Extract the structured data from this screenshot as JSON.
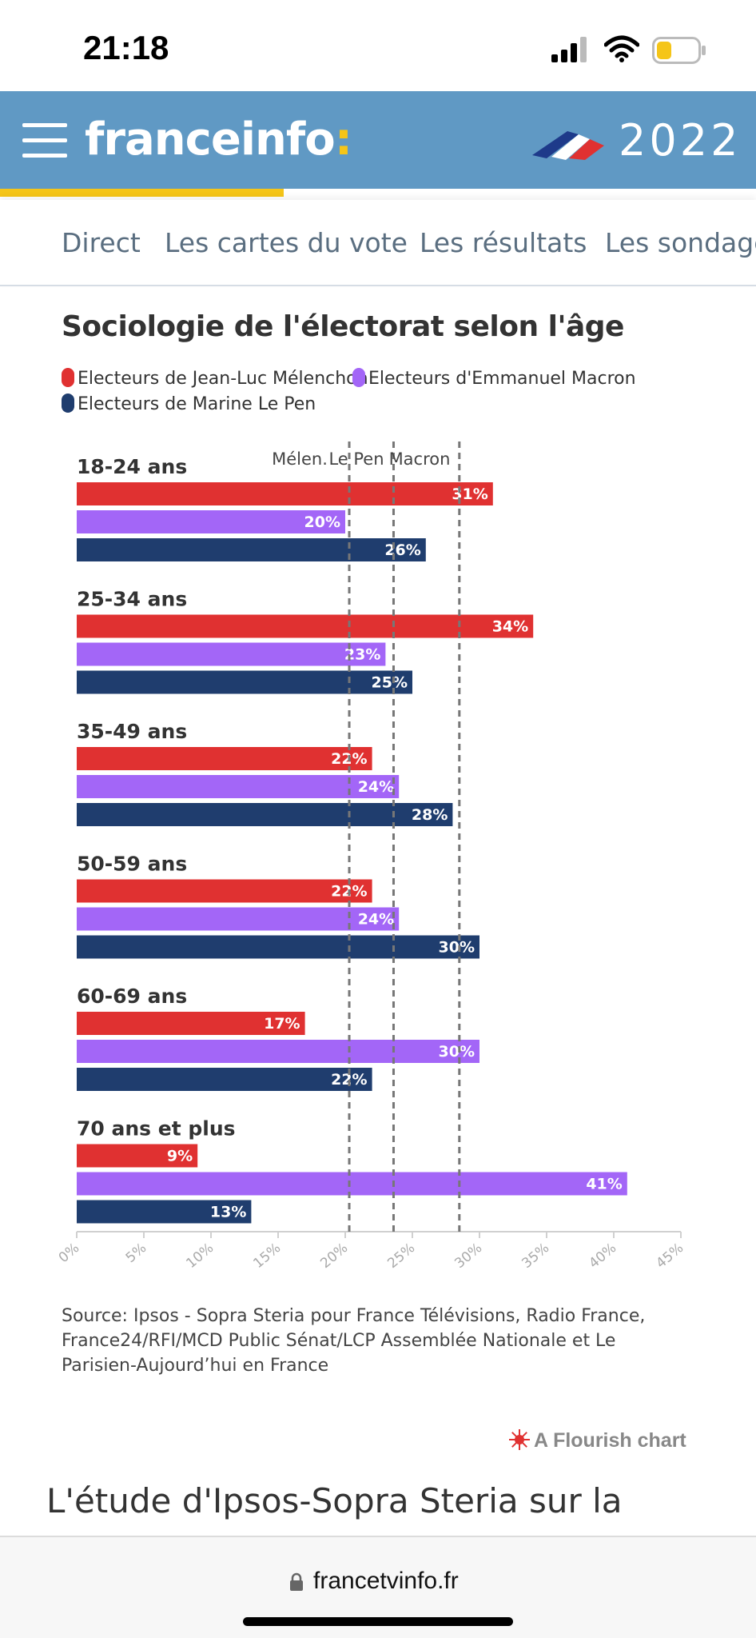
{
  "status_bar": {
    "time": "21:18",
    "signal_icon": "signal-bars-icon",
    "wifi_icon": "wifi-icon",
    "battery_icon": "battery-low-icon",
    "battery_color": "#f5c518"
  },
  "header": {
    "brand": "franceinfo",
    "brand_colon": ":",
    "year": "2022",
    "background": "#6099c4",
    "accent": "#f5c518",
    "menu_icon": "hamburger-menu-icon",
    "flag_icon": "french-flag-icon",
    "reading_progress": 0.375
  },
  "nav": {
    "tabs": [
      "Direct",
      "Les cartes du vote",
      "Les résultats",
      "Les sondages"
    ]
  },
  "chart": {
    "title": "Sociologie de l'électorat selon l'âge",
    "legend": [
      {
        "label": "Electeurs de Jean-Luc Mélenchon",
        "color": "#e03131"
      },
      {
        "label": "Electeurs d'Emmanuel Macron",
        "color": "#a366f7"
      },
      {
        "label": "Electeurs de Marine Le Pen",
        "color": "#1f3d6e"
      }
    ],
    "source": "Source: Ipsos - Sopra Steria pour France Télévisions, Radio France, France24/RFI/MCD Public Sénat/LCP Assemblée Nationale et Le Parisien-Aujourd’hui en France",
    "credit": "A Flourish chart",
    "credit_icon": "flourish-sun-icon"
  },
  "chart_data": {
    "type": "bar",
    "orientation": "horizontal",
    "title": "Sociologie de l'électorat selon l'âge",
    "categories": [
      "18-24 ans",
      "25-34 ans",
      "35-49 ans",
      "50-59 ans",
      "60-69 ans",
      "70 ans et plus"
    ],
    "series": [
      {
        "name": "Electeurs de Jean-Luc Mélenchon",
        "color": "#e03131",
        "values": [
          31,
          34,
          22,
          22,
          17,
          9
        ]
      },
      {
        "name": "Electeurs d'Emmanuel Macron",
        "color": "#a366f7",
        "values": [
          20,
          23,
          24,
          24,
          30,
          41
        ]
      },
      {
        "name": "Electeurs de Marine Le Pen",
        "color": "#1f3d6e",
        "values": [
          26,
          25,
          28,
          30,
          22,
          13
        ]
      }
    ],
    "value_suffix": "%",
    "xlim": [
      0,
      45
    ],
    "xticks": [
      "0%",
      "5%",
      "10%",
      "15%",
      "20%",
      "25%",
      "30%",
      "35%",
      "40%",
      "45%"
    ],
    "reference_lines": [
      {
        "label": "Mélen.",
        "value": 20.3
      },
      {
        "label": "Le Pen",
        "value": 23.6
      },
      {
        "label": "Macron",
        "value": 28.5
      }
    ],
    "grid": false,
    "legend_position": "top-left"
  },
  "article": {
    "text": "L'étude d'Ipsos-Sopra Steria sur la"
  },
  "browser": {
    "url": "francetvinfo.fr",
    "lock_icon": "lock-icon"
  }
}
